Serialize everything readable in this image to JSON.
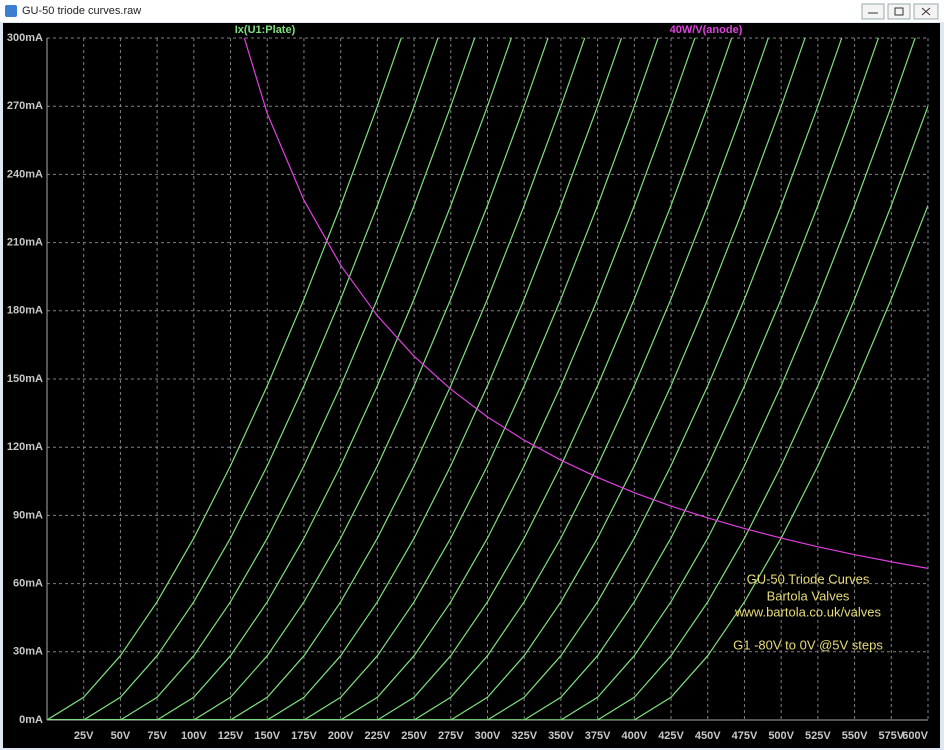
{
  "window": {
    "title": "GU-50 triode curves.raw"
  },
  "chart_data": {
    "type": "line",
    "x": [
      0,
      25,
      50,
      75,
      100,
      125,
      150,
      175,
      200,
      225,
      250,
      275,
      300,
      325,
      350,
      375,
      400,
      425,
      450,
      475,
      500,
      525,
      550,
      575,
      600
    ],
    "xlim": [
      0,
      600
    ],
    "xticks": [
      {
        "value": 25,
        "label": "25V"
      },
      {
        "value": 50,
        "label": "50V"
      },
      {
        "value": 75,
        "label": "75V"
      },
      {
        "value": 100,
        "label": "100V"
      },
      {
        "value": 125,
        "label": "125V"
      },
      {
        "value": 150,
        "label": "150V"
      },
      {
        "value": 175,
        "label": "175V"
      },
      {
        "value": 200,
        "label": "200V"
      },
      {
        "value": 225,
        "label": "225V"
      },
      {
        "value": 250,
        "label": "250V"
      },
      {
        "value": 275,
        "label": "275V"
      },
      {
        "value": 300,
        "label": "300V"
      },
      {
        "value": 325,
        "label": "325V"
      },
      {
        "value": 350,
        "label": "350V"
      },
      {
        "value": 375,
        "label": "375V"
      },
      {
        "value": 400,
        "label": "400V"
      },
      {
        "value": 425,
        "label": "425V"
      },
      {
        "value": 450,
        "label": "450V"
      },
      {
        "value": 475,
        "label": "475V"
      },
      {
        "value": 500,
        "label": "500V"
      },
      {
        "value": 525,
        "label": "525V"
      },
      {
        "value": 550,
        "label": "550V"
      },
      {
        "value": 575,
        "label": "575V"
      },
      {
        "value": 600,
        "label": "600V"
      }
    ],
    "ylim": [
      0,
      300
    ],
    "yticks": [
      {
        "value": 0,
        "label": "0mA"
      },
      {
        "value": 30,
        "label": "30mA"
      },
      {
        "value": 60,
        "label": "60mA"
      },
      {
        "value": 90,
        "label": "90mA"
      },
      {
        "value": 120,
        "label": "120mA"
      },
      {
        "value": 150,
        "label": "150mA"
      },
      {
        "value": 180,
        "label": "180mA"
      },
      {
        "value": 210,
        "label": "210mA"
      },
      {
        "value": 240,
        "label": "240mA"
      },
      {
        "value": 270,
        "label": "270mA"
      },
      {
        "value": 300,
        "label": "300mA"
      }
    ],
    "grid": true,
    "traces": [
      {
        "name": "Ix(U1:Plate)",
        "color": "#7ee07e",
        "curves": [
          [
            0,
            10,
            28.3,
            52,
            80,
            111.8,
            147,
            185.2,
            226.3,
            270,
            316.2,
            null,
            null,
            null,
            null,
            null,
            null,
            null,
            null,
            null,
            null,
            null,
            null,
            null,
            null
          ],
          [
            0,
            0,
            10,
            28.3,
            52,
            80,
            111.8,
            147,
            185.2,
            226.3,
            270,
            316.2,
            null,
            null,
            null,
            null,
            null,
            null,
            null,
            null,
            null,
            null,
            null,
            null,
            null
          ],
          [
            0,
            0,
            0,
            10,
            28.3,
            52,
            80,
            111.8,
            147,
            185.2,
            226.3,
            270,
            316.2,
            null,
            null,
            null,
            null,
            null,
            null,
            null,
            null,
            null,
            null,
            null,
            null
          ],
          [
            0,
            0,
            0,
            0,
            10,
            28.3,
            52,
            80,
            111.8,
            147,
            185.2,
            226.3,
            270,
            316.2,
            null,
            null,
            null,
            null,
            null,
            null,
            null,
            null,
            null,
            null,
            null
          ],
          [
            0,
            0,
            0,
            0,
            0,
            10,
            28.3,
            52,
            80,
            111.8,
            147,
            185.2,
            226.3,
            270,
            316.2,
            null,
            null,
            null,
            null,
            null,
            null,
            null,
            null,
            null,
            null
          ],
          [
            0,
            0,
            0,
            0,
            0,
            0,
            10,
            28.3,
            52,
            80,
            111.8,
            147,
            185.2,
            226.3,
            270,
            316.2,
            null,
            null,
            null,
            null,
            null,
            null,
            null,
            null,
            null
          ],
          [
            0,
            0,
            0,
            0,
            0,
            0,
            0,
            10,
            28.3,
            52,
            80,
            111.8,
            147,
            185.2,
            226.3,
            270,
            316.2,
            null,
            null,
            null,
            null,
            null,
            null,
            null,
            null
          ],
          [
            0,
            0,
            0,
            0,
            0,
            0,
            0,
            0,
            10,
            28.3,
            52,
            80,
            111.8,
            147,
            185.2,
            226.3,
            270,
            316.2,
            null,
            null,
            null,
            null,
            null,
            null,
            null
          ],
          [
            0,
            0,
            0,
            0,
            0,
            0,
            0,
            0,
            0,
            10,
            28.3,
            52,
            80,
            111.8,
            147,
            185.2,
            226.3,
            270,
            316.2,
            null,
            null,
            null,
            null,
            null,
            null
          ],
          [
            0,
            0,
            0,
            0,
            0,
            0,
            0,
            0,
            0,
            0,
            10,
            28.3,
            52,
            80,
            111.8,
            147,
            185.2,
            226.3,
            270,
            316.2,
            null,
            null,
            null,
            null,
            null
          ],
          [
            0,
            0,
            0,
            0,
            0,
            0,
            0,
            0,
            0,
            0,
            0,
            10,
            28.3,
            52,
            80,
            111.8,
            147,
            185.2,
            226.3,
            270,
            316.2,
            null,
            null,
            null,
            null
          ],
          [
            0,
            0,
            0,
            0,
            0,
            0,
            0,
            0,
            0,
            0,
            0,
            0,
            10,
            28.3,
            52,
            80,
            111.8,
            147,
            185.2,
            226.3,
            270,
            316.2,
            null,
            null,
            null
          ],
          [
            0,
            0,
            0,
            0,
            0,
            0,
            0,
            0,
            0,
            0,
            0,
            0,
            0,
            10,
            28.3,
            52,
            80,
            111.8,
            147,
            185.2,
            226.3,
            270,
            316.2,
            null,
            null
          ],
          [
            0,
            0,
            0,
            0,
            0,
            0,
            0,
            0,
            0,
            0,
            0,
            0,
            0,
            0,
            10,
            28.3,
            52,
            80,
            111.8,
            147,
            185.2,
            226.3,
            270,
            316.2,
            null
          ],
          [
            0,
            0,
            0,
            0,
            0,
            0,
            0,
            0,
            0,
            0,
            0,
            0,
            0,
            0,
            0,
            10,
            28.3,
            52,
            80,
            111.8,
            147,
            185.2,
            226.3,
            270,
            316.2
          ],
          [
            0,
            0,
            0,
            0,
            0,
            0,
            0,
            0,
            0,
            0,
            0,
            0,
            0,
            0,
            0,
            0,
            10,
            28.3,
            52,
            80,
            111.8,
            147,
            185.2,
            226.3,
            270
          ],
          [
            0,
            0,
            0,
            0,
            0,
            0,
            0,
            0,
            0,
            0,
            0,
            0,
            0,
            0,
            0,
            0,
            0,
            10,
            28.3,
            52,
            80,
            111.8,
            147,
            185.2,
            226.3
          ]
        ]
      },
      {
        "name": "40W/V(anode)",
        "color": "#e040e0",
        "values": [
          null,
          null,
          null,
          null,
          null,
          320,
          266.7,
          228.6,
          200,
          177.8,
          160,
          145.5,
          133.3,
          123.1,
          114.3,
          106.7,
          100,
          94.1,
          88.9,
          84.2,
          80,
          76.2,
          72.7,
          69.6,
          66.7
        ]
      }
    ],
    "annotations": [
      "GU-50 Triode Curves",
      "Bartola Valves",
      "www.bartola.co.uk/valves",
      "G1 -80V to 0V @5V steps"
    ],
    "annotation_color": "#e8dc78"
  }
}
